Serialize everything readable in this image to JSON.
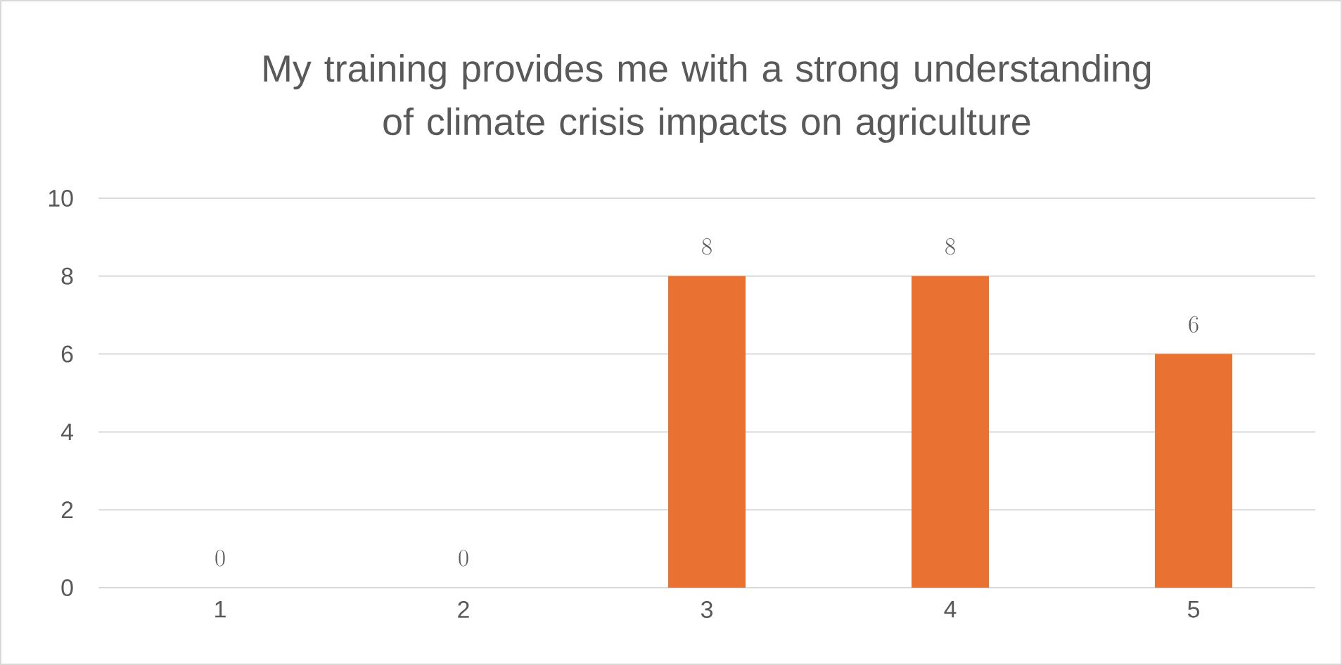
{
  "chart_data": {
    "type": "bar",
    "title": "My training provides me with a strong understanding of climate crisis impacts on agriculture",
    "categories": [
      "1",
      "2",
      "3",
      "4",
      "5"
    ],
    "values": [
      0,
      0,
      8,
      8,
      6
    ],
    "color": "#e97132",
    "ylim": [
      0,
      10
    ],
    "yticks": [
      0,
      2,
      4,
      6,
      8,
      10
    ],
    "grid": "y",
    "data_labels": true
  }
}
